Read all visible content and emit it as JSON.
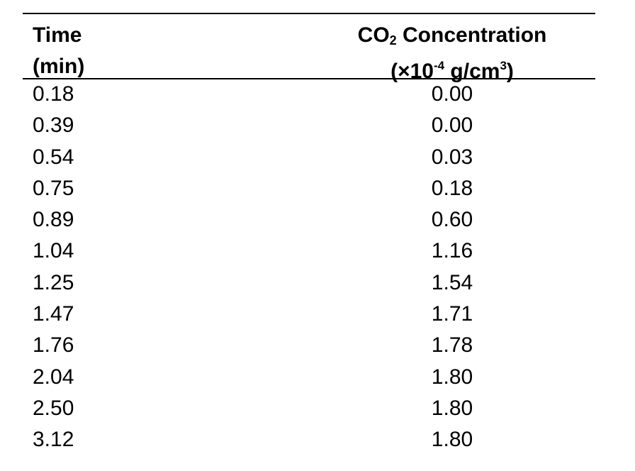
{
  "table": {
    "headers": {
      "col1_line1": "Time",
      "col1_line2": "(min)",
      "col2_line1_pre": "CO",
      "col2_line1_sub": "2",
      "col2_line1_post": " Concentration",
      "col2_line2_pre": "(×10",
      "col2_line2_sup": "-4",
      "col2_line2_mid": " g/cm",
      "col2_line2_sup2": "3",
      "col2_line2_post": ")"
    },
    "rows": [
      {
        "time": "0.18",
        "co2": "0.00"
      },
      {
        "time": "0.39",
        "co2": "0.00"
      },
      {
        "time": "0.54",
        "co2": "0.03"
      },
      {
        "time": "0.75",
        "co2": "0.18"
      },
      {
        "time": "0.89",
        "co2": "0.60"
      },
      {
        "time": "1.04",
        "co2": "1.16"
      },
      {
        "time": "1.25",
        "co2": "1.54"
      },
      {
        "time": "1.47",
        "co2": "1.71"
      },
      {
        "time": "1.76",
        "co2": "1.78"
      },
      {
        "time": "2.04",
        "co2": "1.80"
      },
      {
        "time": "2.50",
        "co2": "1.80"
      },
      {
        "time": "3.12",
        "co2": "1.80"
      }
    ]
  }
}
